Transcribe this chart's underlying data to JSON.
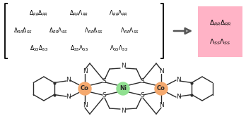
{
  "co_color": "#F5A96E",
  "ni_color": "#90E090",
  "background": "#ffffff",
  "highlight_box_facecolor": "#FFB3C6",
  "lc": "#2a2a2a",
  "row1_data": [
    [
      "D",
      "RR",
      "D",
      "RR"
    ],
    [
      "D",
      "RR",
      "L",
      "RR"
    ],
    [
      "L",
      "RR",
      "L",
      "RR"
    ]
  ],
  "row2_data": [
    [
      "D",
      "RR",
      "D",
      "SS"
    ],
    [
      "D",
      "RR",
      "L",
      "SS"
    ],
    [
      "L",
      "RR",
      "D",
      "SS"
    ],
    [
      "L",
      "RR",
      "L",
      "SS"
    ]
  ],
  "row3_data": [
    [
      "D",
      "SS",
      "D",
      "SS"
    ],
    [
      "D",
      "SS",
      "L",
      "SS"
    ],
    [
      "L",
      "SS",
      "L",
      "SS"
    ]
  ],
  "highlight_line1": [
    "D",
    "RR",
    "D",
    "RR"
  ],
  "highlight_line2": [
    "L",
    "SS",
    "L",
    "SS"
  ]
}
